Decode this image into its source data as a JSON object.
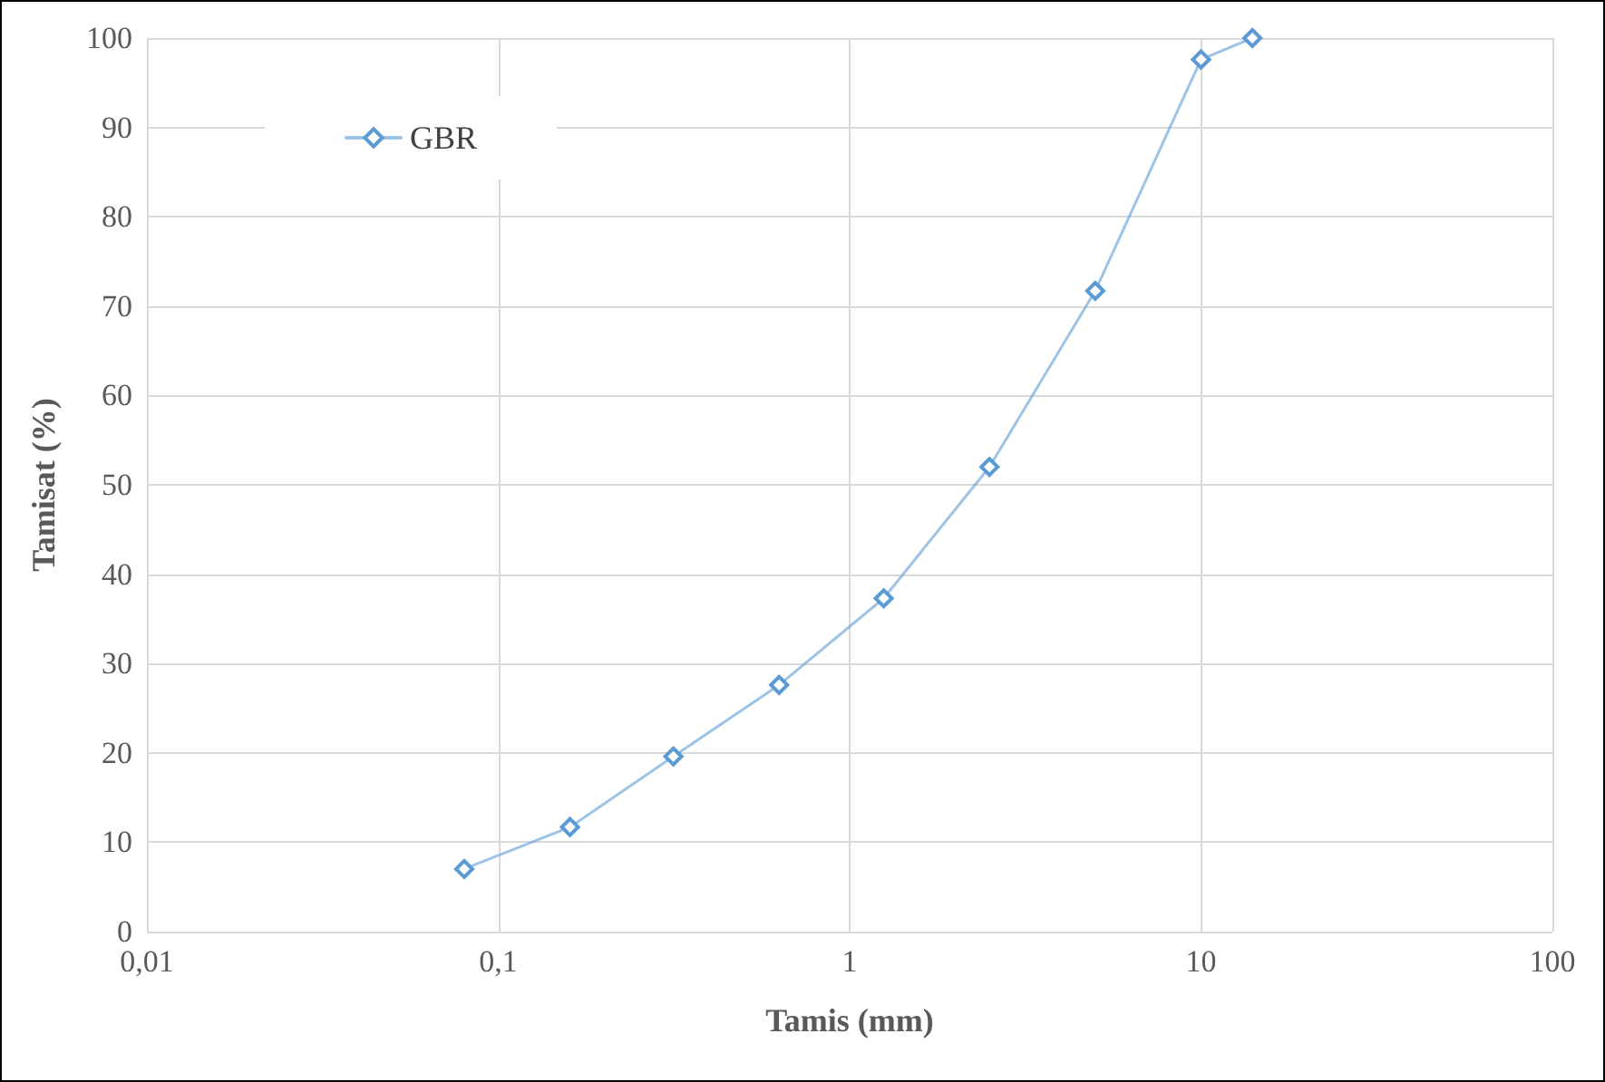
{
  "chart_data": {
    "type": "line",
    "xlabel": "Tamis (mm)",
    "ylabel": "Tamisat (%)",
    "x": [
      0.08,
      0.16,
      0.315,
      0.63,
      1.25,
      2.5,
      5,
      10,
      14
    ],
    "series": [
      {
        "name": "GBR",
        "color": "#5b9bd5",
        "values": [
          7,
          11.7,
          19.6,
          27.6,
          37.3,
          52,
          71.7,
          97.6,
          100
        ]
      }
    ],
    "xlim": [
      0.01,
      100
    ],
    "xticks": [
      {
        "value": 0.01,
        "label": "0,01"
      },
      {
        "value": 0.1,
        "label": "0,1"
      },
      1,
      10,
      100
    ],
    "ylim": [
      0,
      100
    ],
    "yticks": [
      0,
      10,
      20,
      30,
      40,
      50,
      60,
      70,
      80,
      90,
      100
    ],
    "log": "x",
    "grid": true,
    "legend": "top left",
    "marker": "diamond",
    "line_style": "solid"
  }
}
